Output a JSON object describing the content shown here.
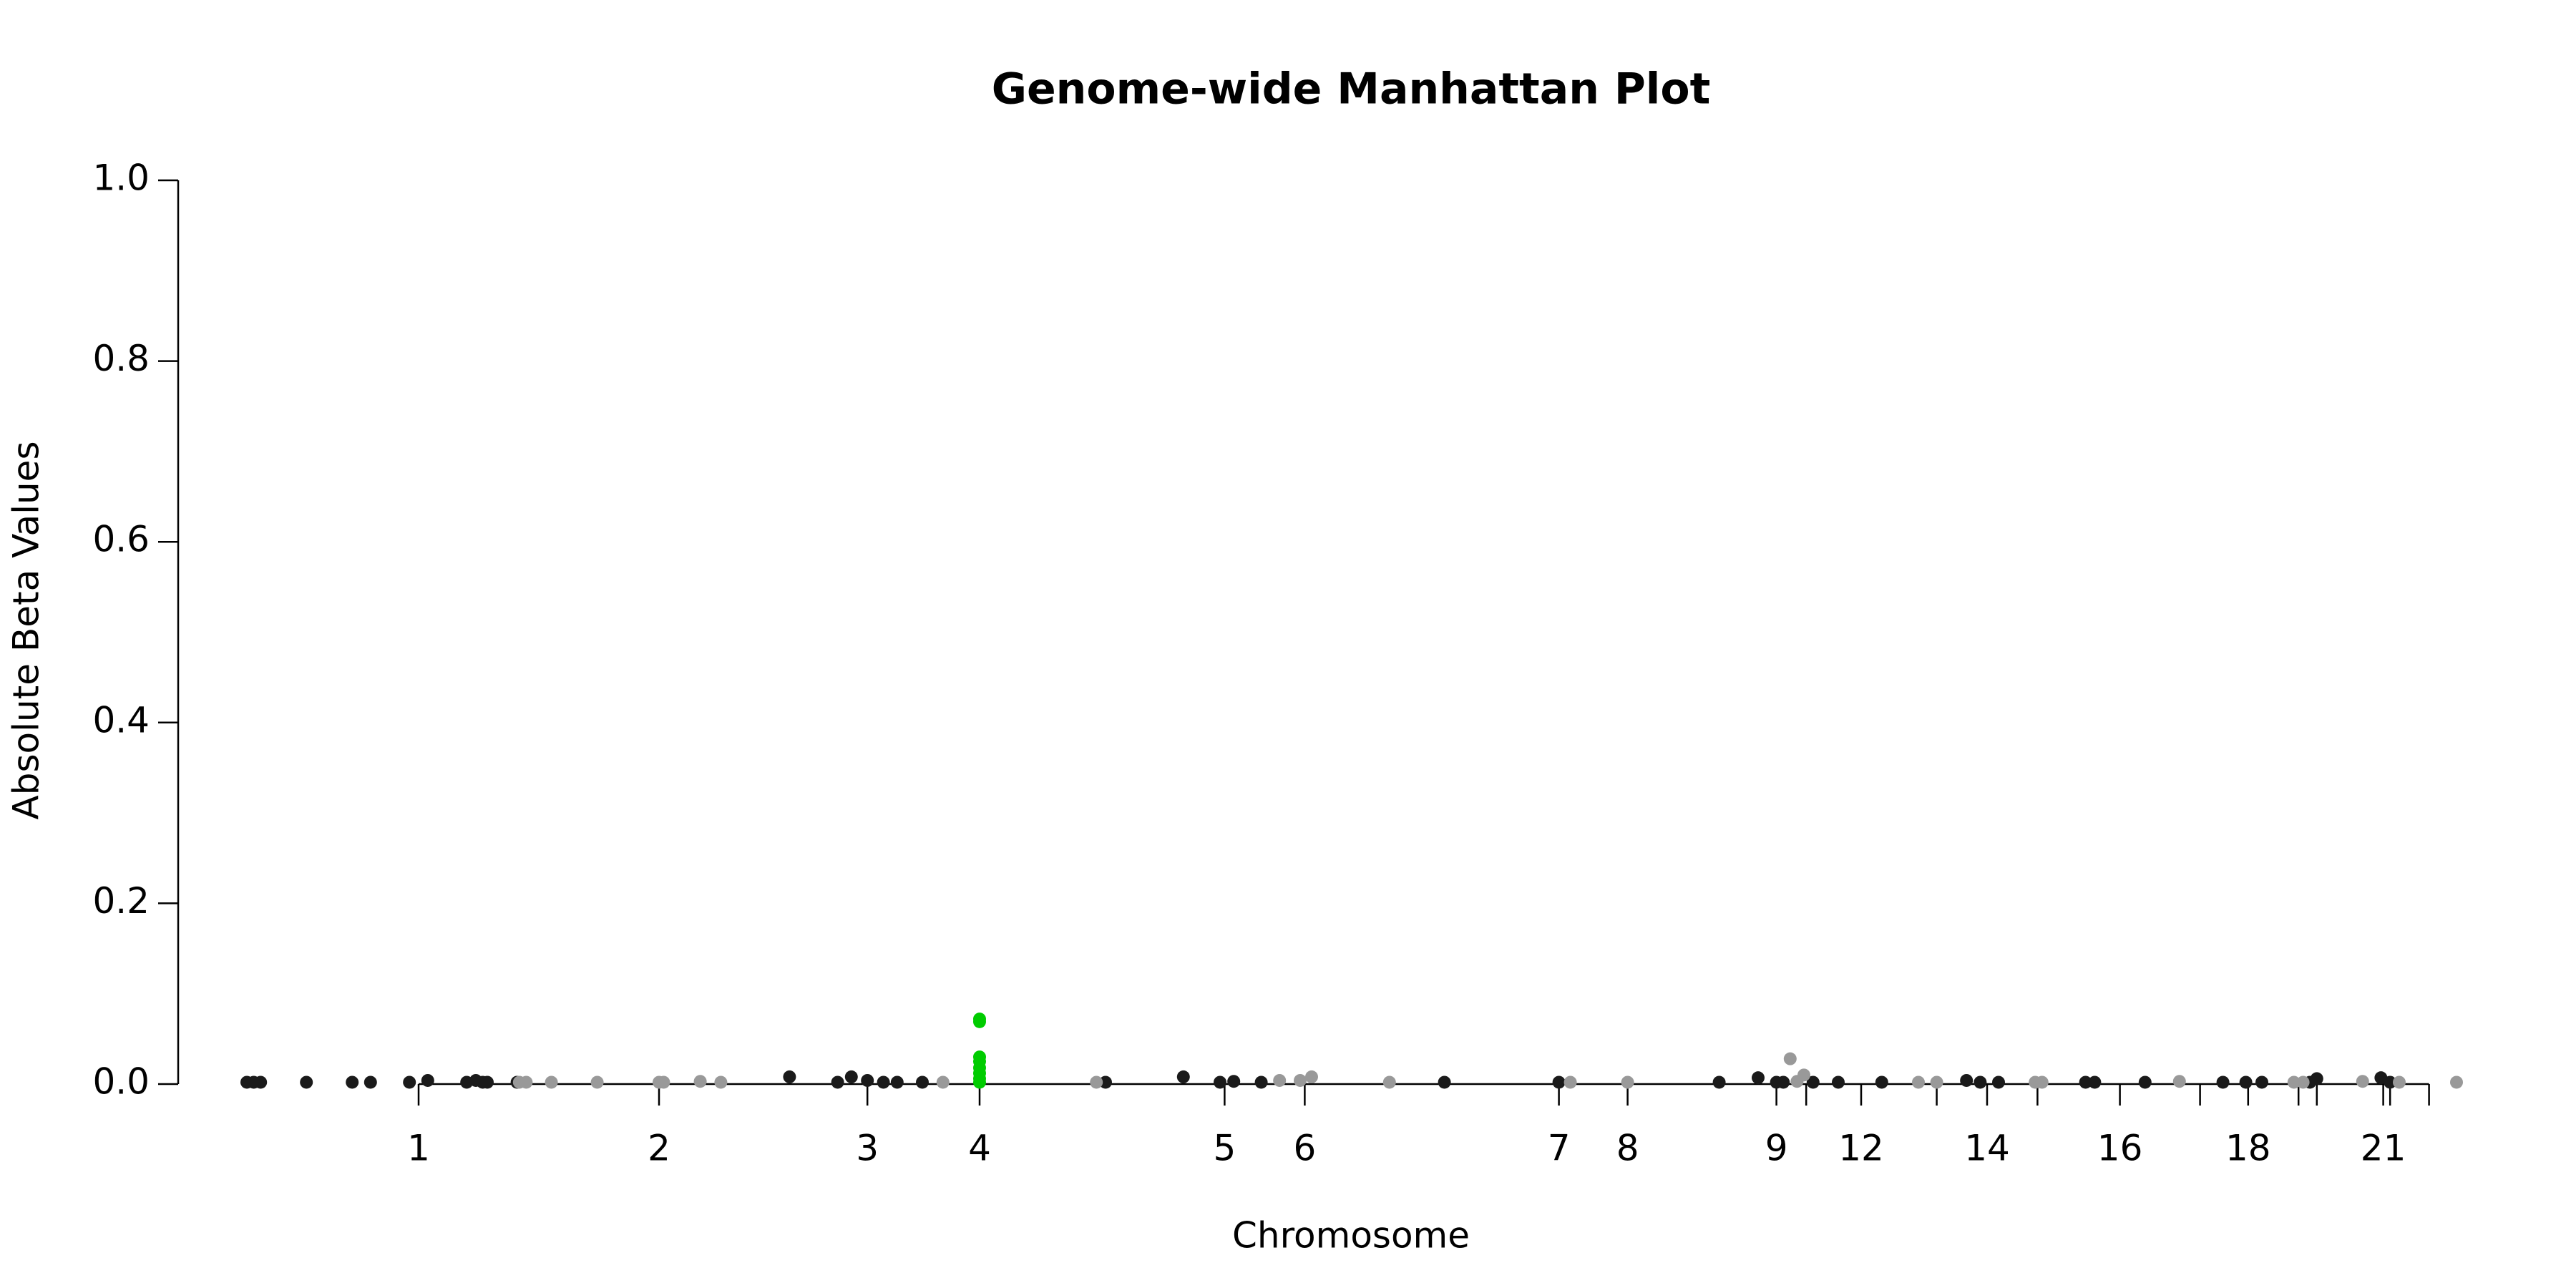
{
  "chart_data": {
    "type": "scatter",
    "title": "Genome-wide Manhattan Plot",
    "x_label": "Chromosome",
    "y_label": "Absolute Beta Values",
    "xlim": [
      0,
      100
    ],
    "ylim": [
      0,
      1
    ],
    "yticks": [
      {
        "value": 0,
        "label": "0.0"
      },
      0.2,
      0.4,
      0.6,
      0.8,
      {
        "value": 1,
        "label": "1.0"
      }
    ],
    "xticks": [
      {
        "value": 10.5,
        "label": "1"
      },
      {
        "value": 21.0,
        "label": "2"
      },
      {
        "value": 30.1,
        "label": "3"
      },
      {
        "value": 35.0,
        "label": "4"
      },
      {
        "value": 45.7,
        "label": "5"
      },
      {
        "value": 49.2,
        "label": "6"
      },
      {
        "value": 60.3,
        "label": "7"
      },
      {
        "value": 63.3,
        "label": "8"
      },
      {
        "value": 69.8,
        "label": "9"
      },
      {
        "value": 71.1,
        "label": null
      },
      {
        "value": 73.5,
        "label": "12"
      },
      {
        "value": 76.8,
        "label": null
      },
      {
        "value": 79.0,
        "label": "14"
      },
      {
        "value": 81.2,
        "label": null
      },
      {
        "value": 84.8,
        "label": "16"
      },
      {
        "value": 88.3,
        "label": null
      },
      {
        "value": 90.4,
        "label": "18"
      },
      {
        "value": 92.6,
        "label": null
      },
      {
        "value": 93.4,
        "label": null
      },
      {
        "value": 96.3,
        "label": "21"
      },
      {
        "value": 96.6,
        "label": null
      },
      {
        "value": 98.3,
        "label": null
      }
    ],
    "grid": false,
    "series": [
      {
        "color": "#1a1a1a",
        "x": [
          3.0,
          3.3,
          3.6,
          5.6,
          7.6,
          8.4,
          10.1,
          10.9,
          12.6,
          13.0,
          13.3,
          13.5,
          14.8,
          26.7,
          28.8,
          29.4,
          30.1,
          30.8,
          31.4,
          32.5,
          40.5,
          43.9,
          45.5,
          46.1,
          47.3,
          55.3,
          60.3,
          67.3,
          69.0,
          69.8,
          70.1,
          71.4,
          72.5,
          74.4,
          78.1,
          78.7,
          79.5,
          83.3,
          83.7,
          85.9,
          89.3,
          90.3,
          91.0,
          93.1,
          93.4,
          96.2,
          96.6
        ],
        "values": [
          0.002,
          0.002,
          0.002,
          0.002,
          0.002,
          0.002,
          0.002,
          0.004,
          0.002,
          0.004,
          0.002,
          0.002,
          0.002,
          0.008,
          0.002,
          0.008,
          0.004,
          0.002,
          0.002,
          0.002,
          0.002,
          0.008,
          0.002,
          0.003,
          0.002,
          0.002,
          0.002,
          0.002,
          0.007,
          0.002,
          0.002,
          0.002,
          0.002,
          0.002,
          0.004,
          0.002,
          0.002,
          0.002,
          0.002,
          0.002,
          0.002,
          0.002,
          0.002,
          0.002,
          0.006,
          0.007,
          0.002
        ]
      },
      {
        "color": "#999999",
        "x": [
          14.9,
          15.2,
          16.3,
          18.3,
          21.0,
          21.2,
          22.8,
          23.7,
          33.4,
          40.1,
          48.1,
          49.0,
          49.5,
          52.9,
          60.8,
          63.3,
          70.4,
          70.7,
          71.0,
          76.0,
          76.8,
          81.1,
          81.4,
          87.4,
          92.4,
          92.8,
          95.4,
          97.0,
          99.5
        ],
        "values": [
          0.002,
          0.002,
          0.002,
          0.002,
          0.002,
          0.002,
          0.003,
          0.002,
          0.002,
          0.002,
          0.004,
          0.004,
          0.008,
          0.002,
          0.002,
          0.002,
          0.028,
          0.003,
          0.01,
          0.002,
          0.002,
          0.002,
          0.002,
          0.003,
          0.002,
          0.002,
          0.003,
          0.002,
          0.002
        ]
      },
      {
        "color": "#00cc00",
        "x": [
          35.0,
          35.0,
          35.0,
          35.0,
          35.0,
          35.0,
          35.0,
          35.0
        ],
        "values": [
          0.072,
          0.069,
          0.03,
          0.025,
          0.018,
          0.012,
          0.006,
          0.002
        ]
      }
    ]
  }
}
